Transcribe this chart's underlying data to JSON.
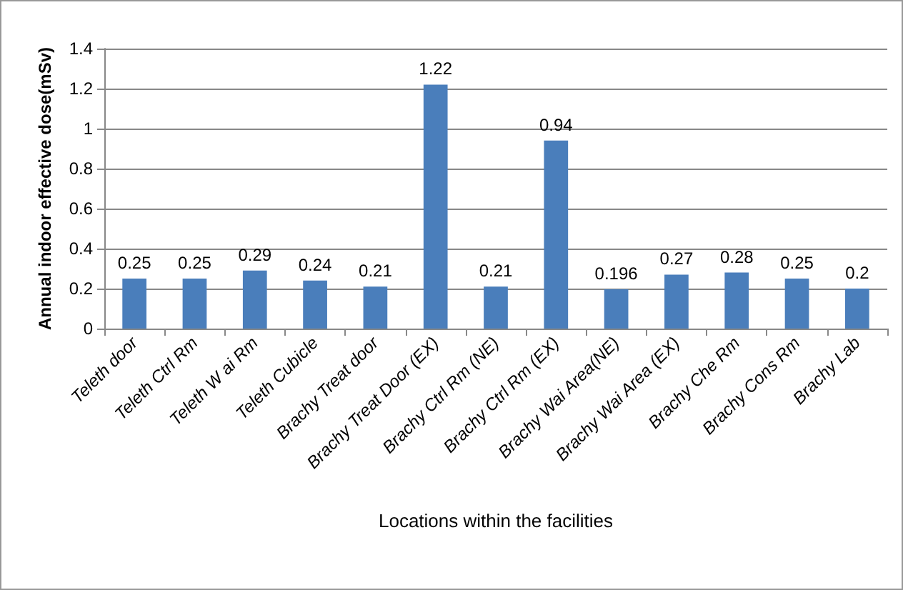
{
  "chart_data": {
    "type": "bar",
    "xlabel": "Locations within the facilities",
    "ylabel": "Annual indoor effective dose(mSv)",
    "categories": [
      "Teleth door",
      "Teleth Ctrl Rm",
      "Teleth W ai Rm",
      "Teleth Cubicle",
      "Brachy Treat door",
      "Brachy Treat Door (EX)",
      "Brachy Ctrl Rm (NE)",
      "Brachy Ctrl Rm (EX)",
      "Brachy Wai Area(NE)",
      "Brachy Wai Area (EX)",
      "Brachy Che Rm",
      "Brachy Cons Rm",
      "Brachy Lab"
    ],
    "values": [
      0.25,
      0.25,
      0.29,
      0.24,
      0.21,
      1.22,
      0.21,
      0.94,
      0.196,
      0.27,
      0.28,
      0.25,
      0.2
    ],
    "color": "#4a7ebb",
    "data_labels": true,
    "ylim": [
      0,
      1.4
    ],
    "yticks": [
      0,
      0.2,
      0.4,
      0.6,
      0.8,
      1,
      1.2,
      1.4
    ],
    "grid": "y"
  }
}
